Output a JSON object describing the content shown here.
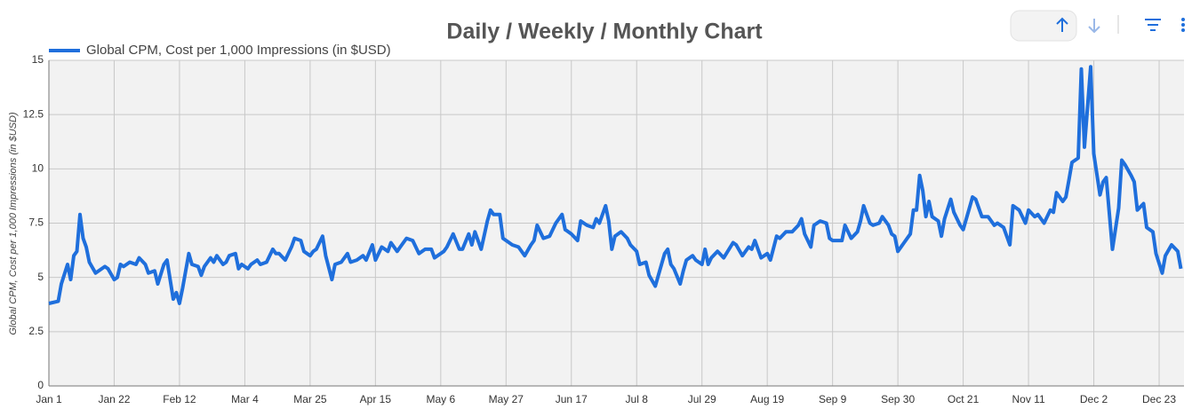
{
  "chart_data": {
    "type": "line",
    "title": "Daily / Weekly / Monthly Chart",
    "y_label": "Global CPM, Cost per 1,000 Impressions (in $USD)",
    "x": [
      0,
      3,
      4,
      6,
      7,
      8,
      9,
      10,
      11,
      12,
      13,
      15,
      18,
      19,
      21,
      22,
      23,
      24,
      26,
      28,
      29,
      31,
      32,
      34,
      35,
      37,
      38,
      40,
      41,
      42,
      43,
      45,
      46,
      48,
      49,
      50,
      52,
      53,
      54,
      56,
      57,
      58,
      60,
      61,
      62,
      64,
      65,
      67,
      68,
      70,
      72,
      73,
      74,
      76,
      78,
      79,
      81,
      82,
      84,
      85,
      86,
      88,
      89,
      91,
      92,
      94,
      96,
      97,
      99,
      101,
      102,
      104,
      105,
      107,
      109,
      110,
      112,
      113,
      115,
      117,
      119,
      121,
      123,
      124,
      127,
      128,
      130,
      132,
      133,
      135,
      136,
      137,
      139,
      141,
      142,
      143,
      145,
      146,
      148,
      149,
      151,
      153,
      155,
      156,
      157,
      159,
      161,
      163,
      165,
      166,
      168,
      170,
      171,
      173,
      175,
      176,
      177,
      179,
      180,
      181,
      182,
      184,
      186,
      187,
      189,
      190,
      192,
      193,
      195,
      196,
      198,
      199,
      200,
      201,
      203,
      204,
      205,
      207,
      208,
      210,
      211,
      212,
      213,
      215,
      217,
      220,
      221,
      223,
      225,
      226,
      227,
      229,
      231,
      232,
      234,
      235,
      237,
      239,
      241,
      242,
      243,
      245,
      246,
      248,
      250,
      251,
      252,
      254,
      255,
      256,
      258,
      260,
      261,
      262,
      264,
      265,
      267,
      268,
      270,
      271,
      272,
      273,
      275,
      277,
      278,
      279,
      280,
      281,
      282,
      283,
      284,
      286,
      287,
      288,
      290,
      291,
      293,
      294,
      296,
      297,
      298,
      300,
      302,
      304,
      305,
      307,
      309,
      310,
      312,
      314,
      315,
      317,
      318,
      320,
      322,
      323,
      324,
      326,
      327,
      328,
      329,
      331,
      332,
      333,
      335,
      336,
      338,
      339,
      340,
      342,
      344,
      345,
      346,
      348,
      349,
      350,
      352,
      353,
      355,
      356,
      358,
      359,
      361,
      363,
      364
    ],
    "series": [
      {
        "name": "Global CPM, Cost per 1,000 Impressions (in $USD)",
        "color": "#1f6fdc",
        "values": [
          3.8,
          3.9,
          4.7,
          5.6,
          4.9,
          6.0,
          6.2,
          7.9,
          6.8,
          6.4,
          5.7,
          5.2,
          5.5,
          5.4,
          4.9,
          5.0,
          5.6,
          5.5,
          5.7,
          5.6,
          5.9,
          5.6,
          5.2,
          5.3,
          4.7,
          5.6,
          5.8,
          4.0,
          4.3,
          3.8,
          4.5,
          6.1,
          5.6,
          5.5,
          5.1,
          5.5,
          5.9,
          5.7,
          6.0,
          5.6,
          5.7,
          6.0,
          6.1,
          5.4,
          5.6,
          5.4,
          5.6,
          5.8,
          5.6,
          5.7,
          6.3,
          6.1,
          6.1,
          5.8,
          6.4,
          6.8,
          6.7,
          6.2,
          6.0,
          6.2,
          6.3,
          6.9,
          6.0,
          4.9,
          5.6,
          5.7,
          6.1,
          5.7,
          5.8,
          6.0,
          5.8,
          6.5,
          5.8,
          6.4,
          6.2,
          6.6,
          6.2,
          6.4,
          6.8,
          6.7,
          6.1,
          6.3,
          6.3,
          5.9,
          6.2,
          6.4,
          7.0,
          6.3,
          6.3,
          7.0,
          6.5,
          7.1,
          6.3,
          7.6,
          8.1,
          7.9,
          7.9,
          6.8,
          6.6,
          6.5,
          6.4,
          6.0,
          6.5,
          6.7,
          7.4,
          6.8,
          6.9,
          7.5,
          7.9,
          7.2,
          7.0,
          6.7,
          7.6,
          7.4,
          7.3,
          7.7,
          7.5,
          8.3,
          7.6,
          6.3,
          6.9,
          7.1,
          6.8,
          6.5,
          6.2,
          5.6,
          5.7,
          5.1,
          4.6,
          5.1,
          6.1,
          6.3,
          5.6,
          5.4,
          4.7,
          5.3,
          5.8,
          6.0,
          5.8,
          5.6,
          6.3,
          5.6,
          5.9,
          6.2,
          5.9,
          6.6,
          6.5,
          6.0,
          6.4,
          6.3,
          6.7,
          5.9,
          6.1,
          5.8,
          6.9,
          6.8,
          7.1,
          7.1,
          7.4,
          7.7,
          7.0,
          6.4,
          7.4,
          7.6,
          7.5,
          6.8,
          6.7,
          6.7,
          6.7,
          7.4,
          6.8,
          7.1,
          7.6,
          8.3,
          7.5,
          7.4,
          7.5,
          7.8,
          7.4,
          7.0,
          6.9,
          6.2,
          6.6,
          7.0,
          8.1,
          8.1,
          9.7,
          9.0,
          7.8,
          8.5,
          7.8,
          7.6,
          6.9,
          7.7,
          8.6,
          8.0,
          7.4,
          7.2,
          8.2,
          8.7,
          8.6,
          7.8,
          7.8,
          7.4,
          7.5,
          7.3,
          6.5,
          8.3,
          8.1,
          7.5,
          8.1,
          7.8,
          7.9,
          7.5,
          8.1,
          8.0,
          8.9,
          8.5,
          8.7,
          9.5,
          10.3,
          10.5,
          14.6,
          11.0,
          14.7,
          10.7,
          8.8,
          9.4,
          9.6,
          6.3,
          8.2,
          10.4,
          10.2,
          9.7,
          9.4,
          8.1,
          8.4,
          7.3,
          7.1,
          6.1,
          5.2,
          6.0,
          6.5,
          6.2,
          5.4
        ]
      }
    ],
    "xlim": [
      0,
      365
    ],
    "xticks": [
      {
        "value": 0,
        "label": "Jan 1"
      },
      {
        "value": 21,
        "label": "Jan 22"
      },
      {
        "value": 42,
        "label": "Feb 12"
      },
      {
        "value": 63,
        "label": "Mar 4"
      },
      {
        "value": 84,
        "label": "Mar 25"
      },
      {
        "value": 105,
        "label": "Apr 15"
      },
      {
        "value": 126,
        "label": "May 6"
      },
      {
        "value": 147,
        "label": "May 27"
      },
      {
        "value": 168,
        "label": "Jun 17"
      },
      {
        "value": 189,
        "label": "Jul 8"
      },
      {
        "value": 210,
        "label": "Jul 29"
      },
      {
        "value": 231,
        "label": "Aug 19"
      },
      {
        "value": 252,
        "label": "Sep 9"
      },
      {
        "value": 273,
        "label": "Sep 30"
      },
      {
        "value": 294,
        "label": "Oct 21"
      },
      {
        "value": 315,
        "label": "Nov 11"
      },
      {
        "value": 336,
        "label": "Dec 2"
      },
      {
        "value": 357,
        "label": "Dec 23"
      }
    ],
    "ylim": [
      0,
      15
    ],
    "yticks": [
      0,
      2.5,
      5,
      7.5,
      10,
      12.5,
      15
    ],
    "grid": true
  }
}
